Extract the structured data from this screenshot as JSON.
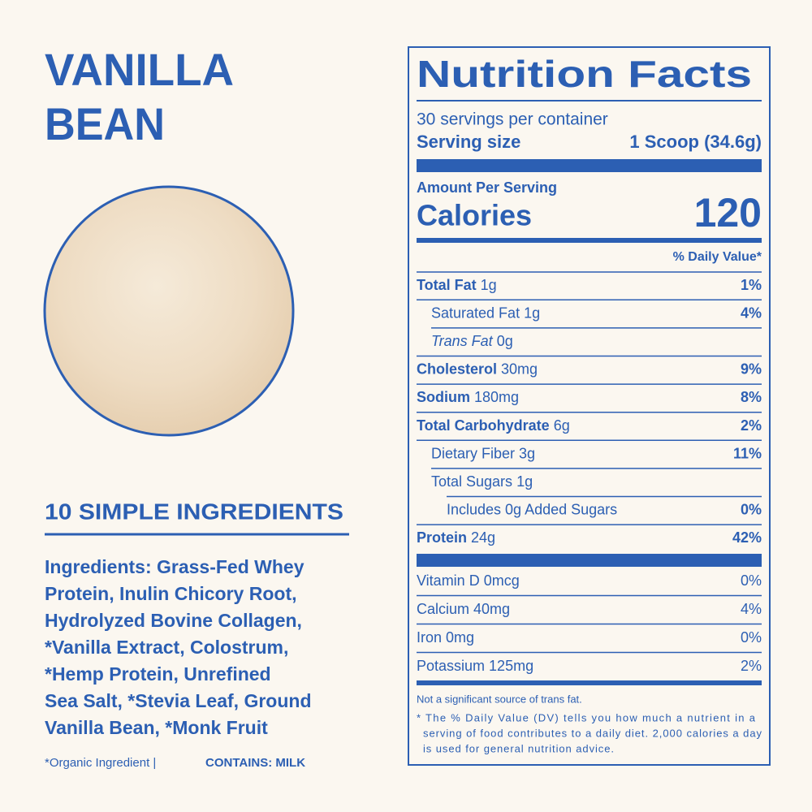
{
  "header": {
    "title_lines": [
      "VANILLA",
      "BEAN"
    ]
  },
  "ingredients": {
    "heading": "10 SIMPLE INGREDIENTS",
    "lines": [
      "Ingredients: Grass-Fed Whey",
      "Protein, Inulin Chicory Root,",
      "Hydrolyzed Bovine Collagen,",
      "*Vanilla Extract, Colostrum,",
      "*Hemp Protein, Unrefined",
      "Sea Salt, *Stevia Leaf, Ground",
      "Vanilla Bean, *Monk Fruit"
    ],
    "footnote": "*Organic Ingredient |",
    "contains": "CONTAINS: MILK"
  },
  "nutrition": {
    "title": "Nutrition Facts",
    "servings": "30 servings per container",
    "serving_size_label": "Serving size",
    "serving_size_value": "1 Scoop (34.6g)",
    "amount_per_serving": "Amount Per Serving",
    "calories_label": "Calories",
    "calories": 120,
    "dv_header": "% Daily Value*",
    "rows": [
      {
        "label": "Total Fat",
        "amount": "1g",
        "dv": "1%",
        "bold": true,
        "indent": 0
      },
      {
        "label": "Saturated Fat",
        "amount": "1g",
        "dv": "4%",
        "bold": false,
        "indent": 1
      },
      {
        "label": "Trans Fat",
        "amount": "0g",
        "bold": false,
        "indent": 1,
        "italic": true
      },
      {
        "label": "Cholesterol",
        "amount": "30mg",
        "dv": "9%",
        "bold": true,
        "indent": 0
      },
      {
        "label": "Sodium",
        "amount": "180mg",
        "dv": "8%",
        "bold": true,
        "indent": 0
      },
      {
        "label": "Total Carbohydrate",
        "amount": "6g",
        "dv": "2%",
        "bold": true,
        "indent": 0
      },
      {
        "label": "Dietary Fiber",
        "amount": "3g",
        "dv": "11%",
        "bold": false,
        "indent": 1
      },
      {
        "label": "Total Sugars",
        "amount": "1g",
        "bold": false,
        "indent": 1
      },
      {
        "label": "Includes 0g Added Sugars",
        "dv": "0%",
        "bold": false,
        "indent": 2
      },
      {
        "label": "Protein",
        "amount": "24g",
        "dv": "42%",
        "bold": true,
        "indent": 0
      }
    ],
    "vitamins": [
      {
        "label": "Vitamin D",
        "amount": "0mcg",
        "dv": "0%"
      },
      {
        "label": "Calcium",
        "amount": "40mg",
        "dv": "4%"
      },
      {
        "label": "Iron",
        "amount": "0mg",
        "dv": "0%"
      },
      {
        "label": "Potassium",
        "amount": "125mg",
        "dv": "2%"
      }
    ],
    "footnotes": [
      "Not a significant source of trans fat.",
      "* The % Daily Value (DV) tells you how much a nutrient in a",
      "serving of food contributes to a daily diet. 2,000 calories a day",
      "is used for general nutrition advice."
    ]
  }
}
